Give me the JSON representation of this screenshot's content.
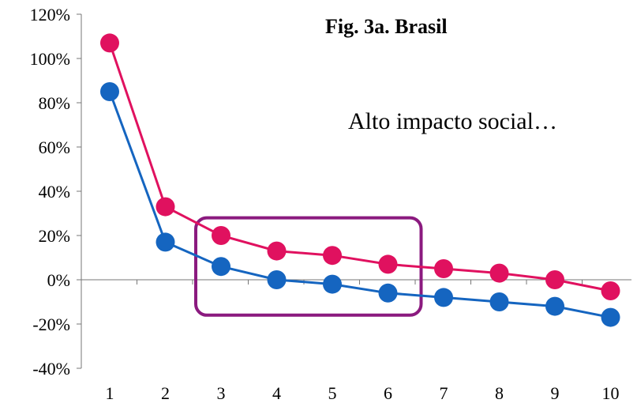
{
  "chart_data": {
    "type": "line",
    "title": "Fig. 3a. Brasil",
    "annotation": "Alto impacto social…",
    "xlabel": "",
    "ylabel": "",
    "x": [
      1,
      2,
      3,
      4,
      5,
      6,
      7,
      8,
      9,
      10
    ],
    "ylim": [
      -40,
      120
    ],
    "yticks": [
      -40,
      -20,
      0,
      20,
      40,
      60,
      80,
      100,
      120
    ],
    "ytick_labels": [
      "-40%",
      "-20%",
      "0%",
      "20%",
      "40%",
      "60%",
      "80%",
      "100%",
      "120%"
    ],
    "grid": false,
    "series": [
      {
        "color": "#e0115f",
        "values": [
          107,
          33,
          20,
          13,
          11,
          7,
          5,
          3,
          0,
          -5
        ]
      },
      {
        "color": "#1565c0",
        "values": [
          85,
          17,
          6,
          0,
          -2,
          -6,
          -8,
          -10,
          -12,
          -17
        ]
      }
    ],
    "highlight_box": {
      "x_from": 3,
      "x_to": 6,
      "color": "#8b1a7f"
    }
  }
}
